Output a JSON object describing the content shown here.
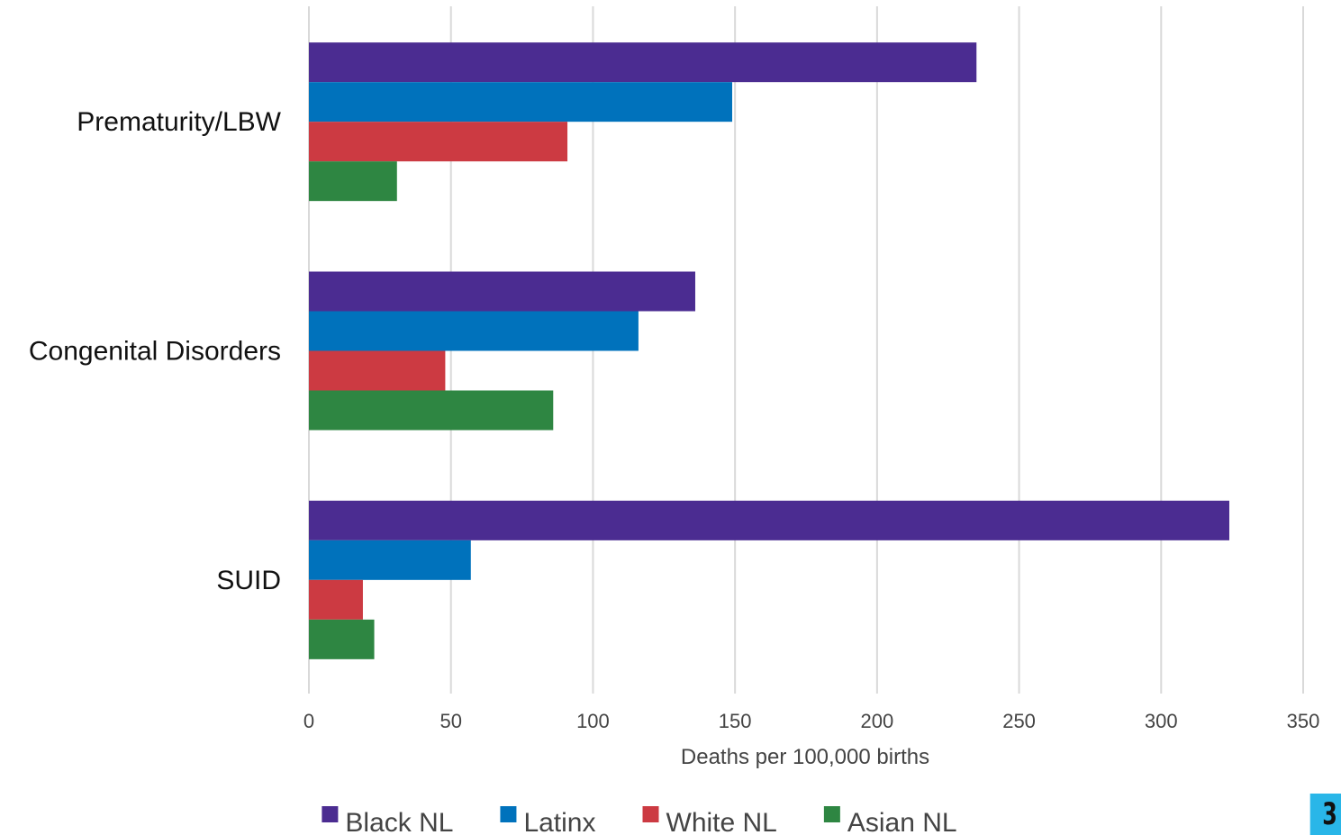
{
  "chart_data": {
    "type": "bar",
    "orientation": "horizontal",
    "categories": [
      "Prematurity/LBW",
      "Congenital Disorders",
      "SUID"
    ],
    "series": [
      {
        "name": "Black NL",
        "color": "#4b2c91",
        "values": [
          235,
          136,
          324
        ]
      },
      {
        "name": "Latinx",
        "color": "#0072bc",
        "values": [
          149,
          116,
          57
        ]
      },
      {
        "name": "White NL",
        "color": "#cc3a42",
        "values": [
          91,
          48,
          19
        ]
      },
      {
        "name": "Asian NL",
        "color": "#2e8642",
        "values": [
          31,
          86,
          23
        ]
      }
    ],
    "xlabel": "Deaths per 100,000 births",
    "ylabel": "",
    "xlim": [
      0,
      350
    ],
    "xticks": [
      "0",
      "50",
      "100",
      "150",
      "200",
      "250",
      "300",
      "350"
    ],
    "grid": "vertical",
    "legend": "bottom"
  },
  "page_badge": {
    "number": "3",
    "color": "#29b6e8"
  }
}
